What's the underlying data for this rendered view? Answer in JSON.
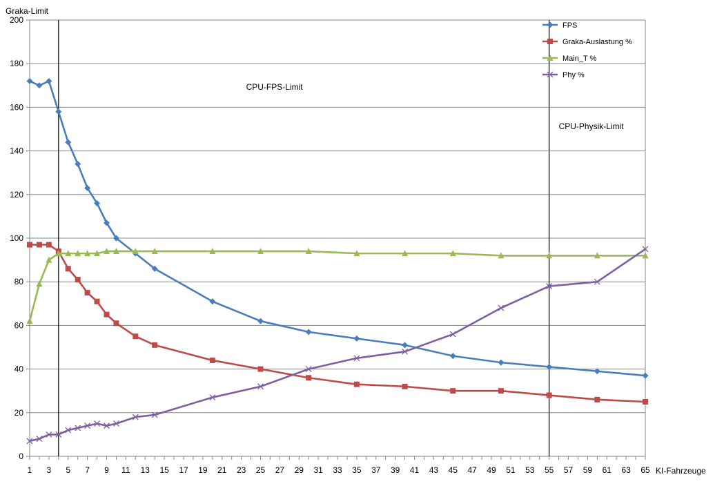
{
  "chart_data": {
    "type": "line",
    "title": "",
    "xlabel": "KI-Fahrzeuge",
    "ylabel": "",
    "xlim": [
      1,
      65
    ],
    "ylim": [
      0,
      200
    ],
    "x_ticks": [
      1,
      3,
      5,
      7,
      9,
      11,
      13,
      15,
      17,
      19,
      21,
      23,
      25,
      27,
      29,
      31,
      33,
      35,
      37,
      39,
      41,
      43,
      45,
      47,
      49,
      51,
      53,
      55,
      57,
      59,
      61,
      63,
      65
    ],
    "y_ticks": [
      0,
      20,
      40,
      60,
      80,
      100,
      120,
      140,
      160,
      180,
      200
    ],
    "grid": true,
    "legend_position": "top-right",
    "x": [
      1,
      2,
      3,
      4,
      5,
      6,
      7,
      8,
      9,
      10,
      12,
      14,
      20,
      25,
      30,
      35,
      40,
      45,
      50,
      55,
      60,
      65
    ],
    "series": [
      {
        "name": "FPS",
        "color": "#4a7ebb",
        "marker": "diamond",
        "values": [
          172,
          170,
          172,
          158,
          144,
          134,
          123,
          116,
          107,
          100,
          93,
          86,
          71,
          62,
          57,
          54,
          51,
          46,
          43,
          41,
          39,
          37
        ]
      },
      {
        "name": "Graka-Auslastung %",
        "color": "#be4b48",
        "marker": "square",
        "values": [
          97,
          97,
          97,
          94,
          86,
          81,
          75,
          71,
          65,
          61,
          55,
          51,
          44,
          40,
          36,
          33,
          32,
          30,
          30,
          28,
          26,
          25
        ]
      },
      {
        "name": "Main_T %",
        "color": "#98b954",
        "marker": "triangle",
        "values": [
          62,
          79,
          90,
          93,
          93,
          93,
          93,
          93,
          94,
          94,
          94,
          94,
          94,
          94,
          94,
          93,
          93,
          93,
          92,
          92,
          92,
          92
        ]
      },
      {
        "name": "Phy %",
        "color": "#7d5fa0",
        "marker": "x",
        "values": [
          7,
          8,
          10,
          10,
          12,
          13,
          14,
          15,
          14,
          15,
          18,
          19,
          27,
          32,
          40,
          45,
          48,
          56,
          68,
          78,
          80,
          95
        ]
      }
    ],
    "vertical_lines": [
      {
        "x": 4,
        "label": "Graka-Limit"
      },
      {
        "x": 55,
        "label": ""
      }
    ],
    "annotations": [
      {
        "text": "CPU-FPS-Limit",
        "x": 23.5,
        "y": 168
      },
      {
        "text": "CPU-Physik-Limit",
        "x": 56,
        "y": 150
      }
    ]
  }
}
